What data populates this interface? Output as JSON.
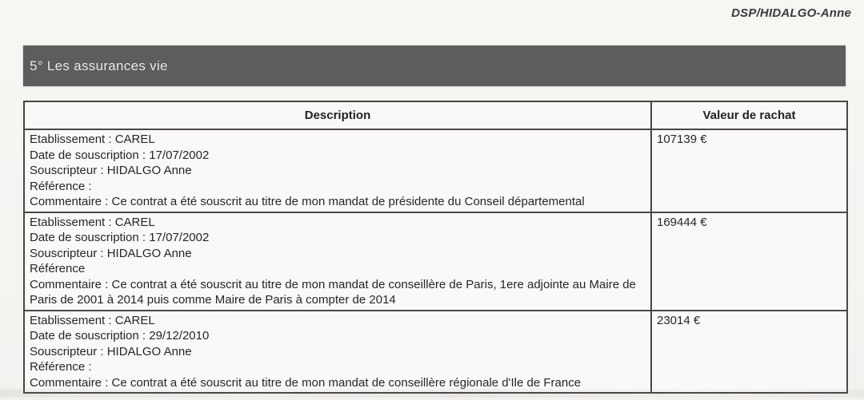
{
  "document": {
    "reference": "DSP/HIDALGO-Anne",
    "section_title": "5° Les assurances vie"
  },
  "table": {
    "columns": [
      "Description",
      "Valeur de rachat"
    ],
    "rows": [
      {
        "lines": [
          "Etablissement : CAREL",
          "Date de souscription : 17/07/2002",
          "Souscripteur : HIDALGO Anne",
          "Référence :",
          "Commentaire : Ce contrat a été souscrit au titre de mon mandat de présidente du Conseil départemental"
        ],
        "value": "107139 €"
      },
      {
        "lines": [
          "Etablissement : CAREL",
          "Date de souscription : 17/07/2002",
          "Souscripteur : HIDALGO Anne",
          "Référence",
          "Commentaire : Ce contrat a été souscrit au titre de mon mandat de conseillère de Paris, 1ere adjointe au Maire de Paris de 2001 à 2014 puis comme Maire de Paris à compter de 2014"
        ],
        "value": "169444 €"
      },
      {
        "lines": [
          "Etablissement : CAREL",
          "Date de souscription : 29/12/2010",
          "Souscripteur : HIDALGO Anne",
          "Référence :",
          "Commentaire : Ce contrat a été souscrit au titre de mon mandat de conseillère régionale d'Ile de France"
        ],
        "value": "23014 €"
      }
    ]
  },
  "colors": {
    "section_bar_bg": "#5d5d5d",
    "section_bar_text": "#ececec",
    "page_bg": "#f6f5f2",
    "table_border": "#474747",
    "text": "#2b2b2b"
  }
}
